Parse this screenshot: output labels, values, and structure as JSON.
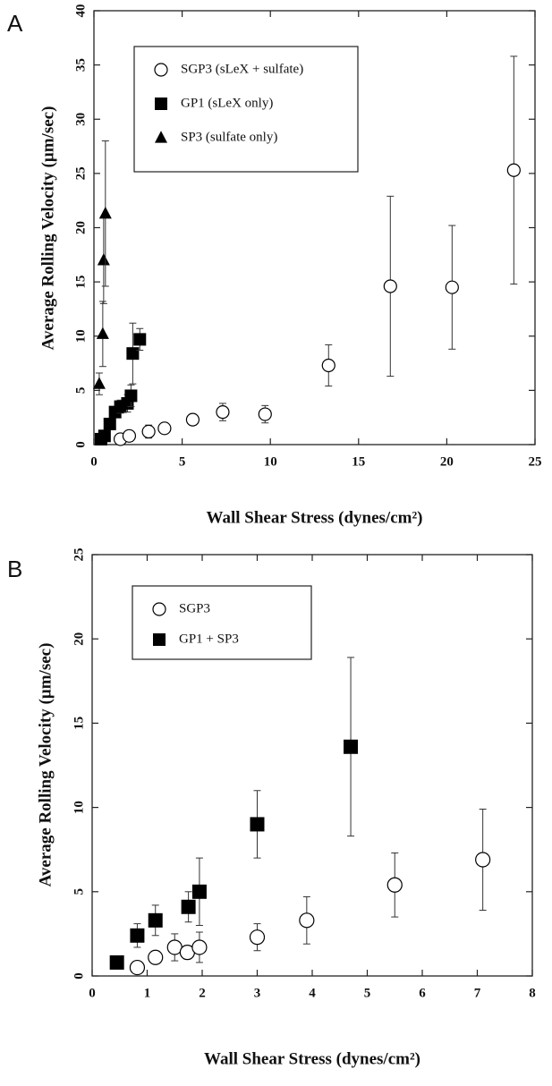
{
  "chart_data": [
    {
      "type": "scatter",
      "panel_label": "A",
      "x_label": "Wall Shear Stress (dynes/cm²)",
      "y_label": "Average Rolling Velocity (µm/sec)",
      "xlim": [
        0,
        25
      ],
      "ylim": [
        0,
        40
      ],
      "xticks": [
        0,
        5,
        10,
        15,
        20,
        25
      ],
      "yticks": [
        0,
        5,
        10,
        15,
        20,
        25,
        30,
        35,
        40
      ],
      "legend": "upper left",
      "series": [
        {
          "name": "SGP3 (sLeX + sulfate)",
          "marker": "circle",
          "color": "#000000",
          "x": [
            1.5,
            2.0,
            3.1,
            4.0,
            5.6,
            7.3,
            9.7,
            13.3,
            16.8,
            20.3,
            23.8
          ],
          "values": [
            0.5,
            0.8,
            1.2,
            1.5,
            2.3,
            3.0,
            2.8,
            7.3,
            14.6,
            14.5,
            25.3
          ],
          "errors": [
            0.2,
            0.5,
            0.6,
            0.5,
            0.5,
            0.8,
            0.8,
            1.9,
            8.3,
            5.7,
            10.5
          ]
        },
        {
          "name": "GP1 (sLeX only)",
          "marker": "square",
          "color": "#000000",
          "x": [
            0.4,
            0.6,
            0.9,
            1.2,
            1.5,
            1.9,
            2.1,
            2.2,
            2.6
          ],
          "values": [
            0.5,
            0.8,
            1.9,
            3.0,
            3.5,
            3.8,
            4.5,
            8.4,
            9.7
          ],
          "errors": [
            0.2,
            0.3,
            0.4,
            0.5,
            0.6,
            0.8,
            1.0,
            2.8,
            1.0
          ]
        },
        {
          "name": "SP3 (sulfate only)",
          "marker": "triangle",
          "color": "#000000",
          "x": [
            0.3,
            0.5,
            0.55,
            0.65
          ],
          "values": [
            5.6,
            10.2,
            17.0,
            21.3
          ],
          "errors": [
            1.0,
            3.0,
            4.0,
            6.7
          ]
        }
      ]
    },
    {
      "type": "scatter",
      "panel_label": "B",
      "x_label": "Wall Shear Stress (dynes/cm²)",
      "y_label": "Average Rolling Velocity (µm/sec)",
      "xlim": [
        0,
        8
      ],
      "ylim": [
        0,
        25
      ],
      "xticks": [
        0,
        1,
        2,
        3,
        4,
        5,
        6,
        7,
        8
      ],
      "yticks": [
        0,
        5,
        10,
        15,
        20,
        25
      ],
      "legend": "upper left",
      "series": [
        {
          "name": "SGP3",
          "marker": "circle",
          "color": "#000000",
          "x": [
            0.82,
            1.15,
            1.5,
            1.73,
            1.95,
            3.0,
            3.9,
            5.5,
            7.1
          ],
          "values": [
            0.5,
            1.1,
            1.7,
            1.4,
            1.7,
            2.3,
            3.3,
            5.4,
            6.9
          ],
          "errors": [
            0.3,
            0.3,
            0.8,
            0.4,
            0.9,
            0.8,
            1.4,
            1.9,
            3.0
          ]
        },
        {
          "name": "GP1 + SP3",
          "marker": "square",
          "color": "#000000",
          "x": [
            0.45,
            0.82,
            1.15,
            1.75,
            1.95,
            3.0,
            4.7
          ],
          "values": [
            0.8,
            2.4,
            3.3,
            4.1,
            5.0,
            9.0,
            13.6
          ],
          "errors": [
            0.1,
            0.7,
            0.9,
            0.9,
            2.0,
            2.0,
            5.3
          ]
        }
      ]
    }
  ]
}
